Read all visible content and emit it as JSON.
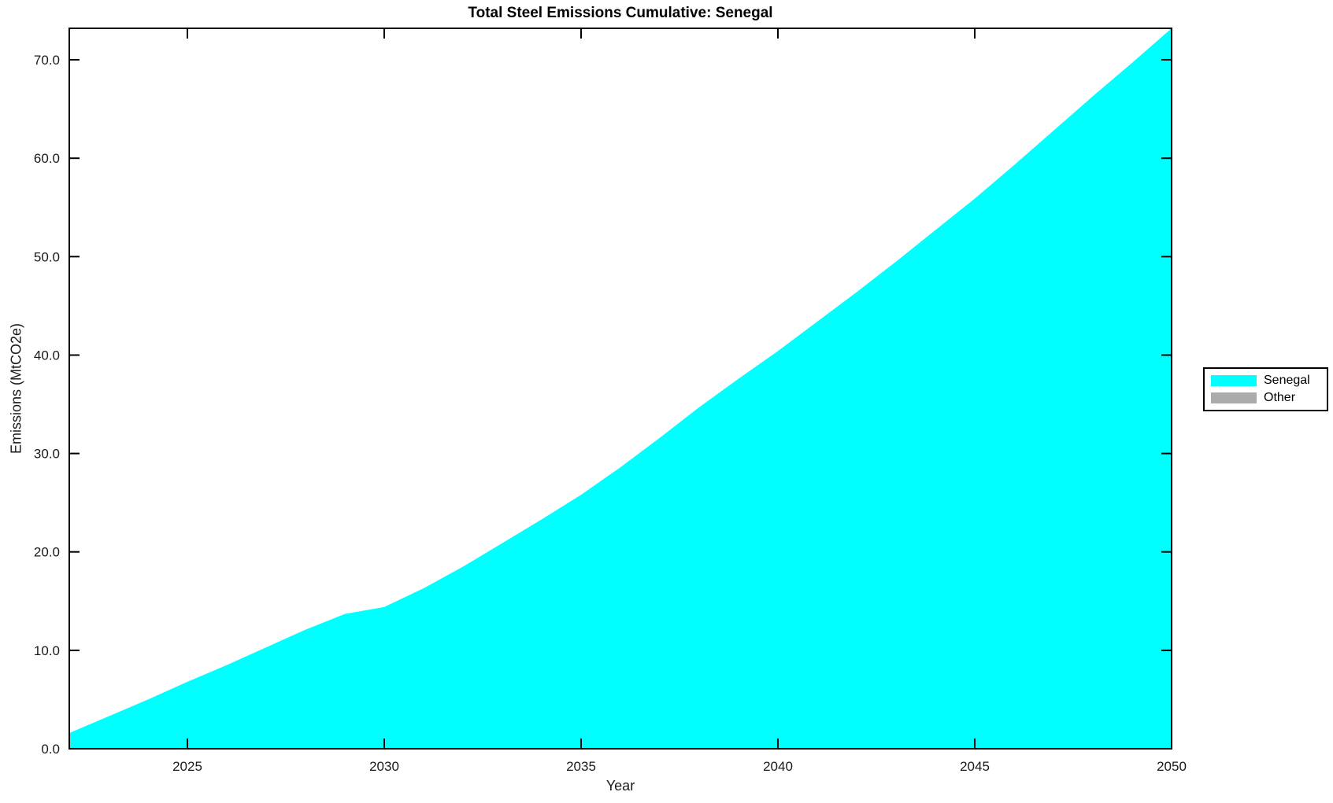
{
  "chart_data": {
    "type": "area",
    "title": "Total Steel Emissions Cumulative: Senegal",
    "xlabel": "Year",
    "ylabel": "Emissions (MtCO2e)",
    "x": [
      2022,
      2023,
      2024,
      2025,
      2026,
      2027,
      2028,
      2029,
      2030,
      2031,
      2032,
      2033,
      2034,
      2035,
      2036,
      2037,
      2038,
      2039,
      2040,
      2041,
      2042,
      2043,
      2044,
      2045,
      2046,
      2047,
      2048,
      2049,
      2050
    ],
    "series": [
      {
        "name": "Senegal",
        "color": "#00FFFF",
        "values": [
          1.6,
          3.3,
          5.0,
          6.8,
          8.5,
          10.3,
          12.1,
          13.7,
          14.4,
          16.3,
          18.5,
          20.9,
          23.3,
          25.8,
          28.6,
          31.6,
          34.7,
          37.6,
          40.4,
          43.4,
          46.4,
          49.5,
          52.7,
          55.9,
          59.3,
          62.8,
          66.3,
          69.7,
          73.2
        ]
      },
      {
        "name": "Other",
        "color": "#ABABAB",
        "values": [
          0,
          0,
          0,
          0,
          0,
          0,
          0,
          0,
          0,
          0,
          0,
          0,
          0,
          0,
          0,
          0,
          0,
          0,
          0,
          0,
          0,
          0,
          0,
          0,
          0,
          0,
          0,
          0,
          0
        ]
      }
    ],
    "xlim": [
      2022,
      2050
    ],
    "ylim": [
      0,
      73.2
    ],
    "xticks": [
      2025,
      2030,
      2035,
      2040,
      2045,
      2050
    ],
    "xtick_labels": [
      "2025",
      "2030",
      "2035",
      "2040",
      "2045",
      "2050"
    ],
    "yticks": [
      0,
      10,
      20,
      30,
      40,
      50,
      60,
      70
    ],
    "ytick_labels": [
      "0.0",
      "10.0",
      "20.0",
      "30.0",
      "40.0",
      "50.0",
      "60.0",
      "70.0"
    ],
    "grid": false,
    "legend_position": "right-outside",
    "legend": [
      {
        "label": "Senegal",
        "color": "#00FFFF"
      },
      {
        "label": "Other",
        "color": "#ABABAB"
      }
    ]
  },
  "style": {
    "axis_color": "#000000",
    "text_color": "#1a1a1a",
    "background": "#FFFFFF"
  }
}
